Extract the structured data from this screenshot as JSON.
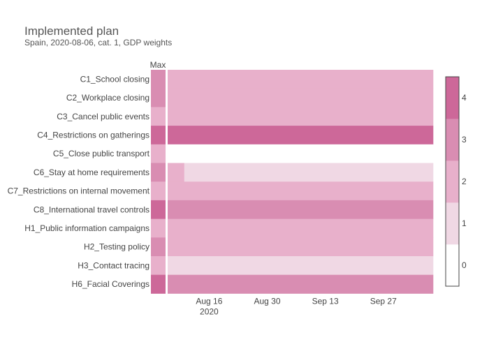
{
  "chart_data": {
    "type": "heatmap",
    "title": "Implemented plan",
    "subtitle": "Spain, 2020-08-06, cat. 1, GDP weights",
    "max_label": "Max",
    "rows": [
      "C1_School closing",
      "C2_Workplace closing",
      "C3_Cancel public events",
      "C4_Restrictions on gatherings",
      "C5_Close public transport",
      "C6_Stay at home requirements",
      "C7_Restrictions on internal movement",
      "C8_International travel controls",
      "H1_Public information campaigns",
      "H2_Testing policy",
      "H3_Contact tracing",
      "H6_Facial Coverings"
    ],
    "max_values": [
      3,
      3,
      2,
      4,
      2,
      3,
      2,
      4,
      2,
      3,
      2,
      4
    ],
    "x_start": "2020-08-06",
    "x_end": "2020-10-09",
    "x_ticks": [
      {
        "date": "2020-08-16",
        "label": "Aug 16",
        "sublabel": "2020"
      },
      {
        "date": "2020-08-30",
        "label": "Aug 30",
        "sublabel": ""
      },
      {
        "date": "2020-09-13",
        "label": "Sep 13",
        "sublabel": ""
      },
      {
        "date": "2020-09-27",
        "label": "Sep 27",
        "sublabel": ""
      }
    ],
    "segments": [
      [
        {
          "from": "2020-08-06",
          "to": "2020-10-09",
          "value": 2
        }
      ],
      [
        {
          "from": "2020-08-06",
          "to": "2020-10-09",
          "value": 2
        }
      ],
      [
        {
          "from": "2020-08-06",
          "to": "2020-10-09",
          "value": 2
        }
      ],
      [
        {
          "from": "2020-08-06",
          "to": "2020-10-09",
          "value": 4
        }
      ],
      [
        {
          "from": "2020-08-06",
          "to": "2020-10-09",
          "value": 0
        }
      ],
      [
        {
          "from": "2020-08-06",
          "to": "2020-08-10",
          "value": 2
        },
        {
          "from": "2020-08-10",
          "to": "2020-10-09",
          "value": 1
        }
      ],
      [
        {
          "from": "2020-08-06",
          "to": "2020-10-09",
          "value": 2
        }
      ],
      [
        {
          "from": "2020-08-06",
          "to": "2020-10-09",
          "value": 3
        }
      ],
      [
        {
          "from": "2020-08-06",
          "to": "2020-10-09",
          "value": 2
        }
      ],
      [
        {
          "from": "2020-08-06",
          "to": "2020-10-09",
          "value": 2
        }
      ],
      [
        {
          "from": "2020-08-06",
          "to": "2020-10-09",
          "value": 1
        }
      ],
      [
        {
          "from": "2020-08-06",
          "to": "2020-10-09",
          "value": 3
        }
      ]
    ],
    "colorscale": {
      "0": "#ffffff",
      "1": "#f0d8e4",
      "2": "#e8b0cb",
      "3": "#d98db2",
      "4": "#cd6899"
    },
    "colorbar_ticks": [
      0,
      1,
      2,
      3,
      4
    ]
  }
}
